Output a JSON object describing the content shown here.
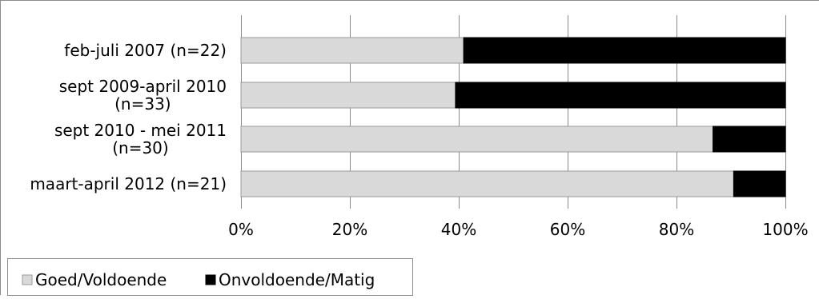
{
  "chart_data": {
    "type": "bar",
    "orientation": "horizontal",
    "stacked": "percent",
    "categories": [
      [
        "feb-juli 2007 (n=22)"
      ],
      [
        "sept 2009-april 2010",
        "(n=33)"
      ],
      [
        "sept 2010 - mei 2011",
        "(n=30)"
      ],
      [
        "maart-april 2012 (n=21)"
      ]
    ],
    "series": [
      {
        "name": "Goed/Voldoende",
        "values": [
          40.9,
          39.4,
          86.7,
          90.5
        ],
        "color": "#d9d9d9"
      },
      {
        "name": "Onvoldoende/Matig",
        "values": [
          59.1,
          60.6,
          13.3,
          9.5
        ],
        "color": "#000000"
      }
    ],
    "xlim": [
      0,
      100
    ],
    "xticks": [
      "0%",
      "20%",
      "40%",
      "60%",
      "80%",
      "100%"
    ],
    "grid": true,
    "legend_position": "bottom-left",
    "title": "",
    "xlabel": "",
    "ylabel": ""
  }
}
